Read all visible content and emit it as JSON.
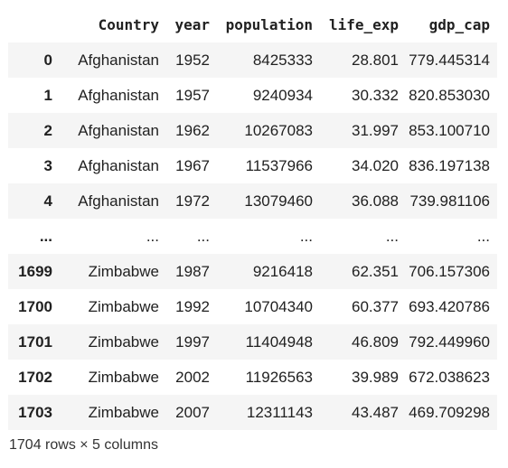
{
  "dataframe": {
    "columns": [
      "",
      "Country",
      "year",
      "population",
      "life_exp",
      "gdp_cap"
    ],
    "rows": [
      {
        "index": "0",
        "cells": [
          "Afghanistan",
          "1952",
          "8425333",
          "28.801",
          "779.445314"
        ]
      },
      {
        "index": "1",
        "cells": [
          "Afghanistan",
          "1957",
          "9240934",
          "30.332",
          "820.853030"
        ]
      },
      {
        "index": "2",
        "cells": [
          "Afghanistan",
          "1962",
          "10267083",
          "31.997",
          "853.100710"
        ]
      },
      {
        "index": "3",
        "cells": [
          "Afghanistan",
          "1967",
          "11537966",
          "34.020",
          "836.197138"
        ]
      },
      {
        "index": "4",
        "cells": [
          "Afghanistan",
          "1972",
          "13079460",
          "36.088",
          "739.981106"
        ]
      },
      {
        "index": "...",
        "cells": [
          "...",
          "...",
          "...",
          "...",
          "..."
        ]
      },
      {
        "index": "1699",
        "cells": [
          "Zimbabwe",
          "1987",
          "9216418",
          "62.351",
          "706.157306"
        ]
      },
      {
        "index": "1700",
        "cells": [
          "Zimbabwe",
          "1992",
          "10704340",
          "60.377",
          "693.420786"
        ]
      },
      {
        "index": "1701",
        "cells": [
          "Zimbabwe",
          "1997",
          "11404948",
          "46.809",
          "792.449960"
        ]
      },
      {
        "index": "1702",
        "cells": [
          "Zimbabwe",
          "2002",
          "11926563",
          "39.989",
          "672.038623"
        ]
      },
      {
        "index": "1703",
        "cells": [
          "Zimbabwe",
          "2007",
          "12311143",
          "43.487",
          "469.709298"
        ]
      }
    ],
    "shape_text": "1704 rows × 5 columns"
  }
}
